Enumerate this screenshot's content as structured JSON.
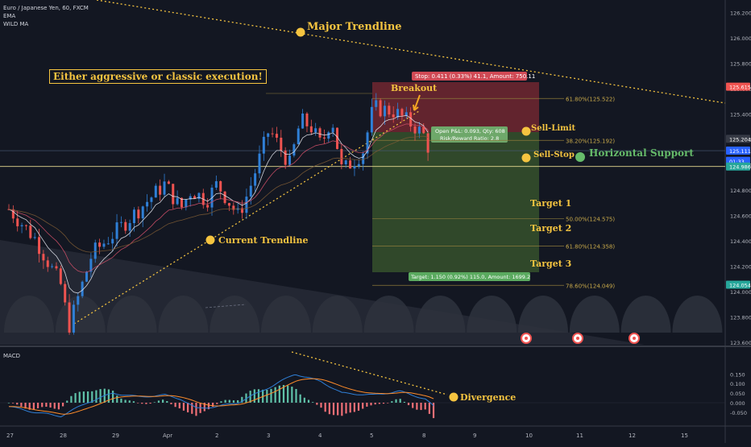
{
  "header": {
    "symbol": "Euro / Japanese Yen, 60, FXCM",
    "indicators": [
      "EMA",
      "WILD MA"
    ]
  },
  "annotations": {
    "major_trendline": "Major Trendline",
    "current_trendline": "Current Trendline",
    "execution_note": "Either aggressive or classic execution!",
    "breakout": "Breakout",
    "sell_limit": "Sell-Limit",
    "sell_stop": "Sell-Stop",
    "horizontal_support": "Horizontal Support",
    "target1": "Target 1",
    "target2": "Target 2",
    "target3": "Target 3",
    "divergence": "Divergence"
  },
  "position_tool": {
    "stop_label": "Stop: 0.411 (0.33%) 41.1, Amount: 750.11",
    "open_pnl": "Open P&L: 0.093, Qty: 608",
    "risk_reward": "Risk/Reward Ratio: 2.8",
    "target_label": "Target: 1.150 (0.92%) 115.0, Amount: 1699.2"
  },
  "fib_levels": [
    {
      "label": "61.80%(125.522)",
      "price": 125.522
    },
    {
      "label": "38.20%(125.192)",
      "price": 125.192
    },
    {
      "label": "50.00%(124.575)",
      "price": 124.575
    },
    {
      "label": "61.80%(124.358)",
      "price": 124.358
    },
    {
      "label": "78.60%(124.049)",
      "price": 124.049
    }
  ],
  "price_axis": {
    "ticks": [
      "126.200",
      "126.000",
      "125.800",
      "125.600",
      "125.400",
      "125.200",
      "125.000",
      "124.800",
      "124.600",
      "124.400",
      "124.200",
      "124.000",
      "123.800",
      "123.600"
    ],
    "tags": [
      {
        "text": "125.615",
        "price": 125.615,
        "color": "#ef5350"
      },
      {
        "text": "125.204",
        "price": 125.204,
        "color": "#363a45"
      },
      {
        "text": "125.111",
        "price": 125.111,
        "color": "#2962ff"
      },
      {
        "text": "01:33",
        "price": 125.03,
        "color": "#2962ff"
      },
      {
        "text": "124.986",
        "price": 124.986,
        "color": "#26a69a"
      },
      {
        "text": "124.054",
        "price": 124.054,
        "color": "#26a69a"
      }
    ]
  },
  "time_axis": [
    "27",
    "28",
    "29",
    "Apr",
    "2",
    "3",
    "4",
    "5",
    "8",
    "9",
    "10",
    "11",
    "12",
    "15"
  ],
  "macd": {
    "label": "MACD",
    "ticks": [
      "0.150",
      "0.100",
      "0.050",
      "0.000",
      "-0.050"
    ]
  },
  "colors": {
    "up": "#26a69a",
    "down": "#ef5350",
    "trendline": "#f5c440",
    "stop_zone": "#7d2a33",
    "target_zone": "#3b5a2e"
  },
  "chart_data": {
    "type": "line",
    "title": "Euro / Japanese Yen, 60, FXCM",
    "ylim": [
      123.52,
      126.28
    ],
    "price_path": {
      "x_days": [
        0,
        0.5,
        1.0,
        1.15,
        1.6,
        2.0,
        2.5,
        3.0,
        3.3,
        3.5,
        3.8,
        4.0,
        4.4,
        4.6,
        5.0,
        5.4,
        5.6,
        5.8,
        6.0,
        6.2,
        6.4,
        6.8,
        7.0,
        7.4,
        7.8,
        8.0,
        8.15
      ],
      "values": [
        124.65,
        124.42,
        124.05,
        123.72,
        124.3,
        124.45,
        124.65,
        124.85,
        124.65,
        124.8,
        124.72,
        124.85,
        124.6,
        124.78,
        125.28,
        125.0,
        125.35,
        125.3,
        125.15,
        125.38,
        124.95,
        125.1,
        125.45,
        125.42,
        125.3,
        125.22,
        125.0
      ]
    },
    "macd_path": {
      "x_days": [
        0,
        0.5,
        1.0,
        1.5,
        2.0,
        2.5,
        3.0,
        3.3,
        3.6,
        4.0,
        4.4,
        5.0,
        5.5,
        6.0,
        6.4,
        7.0,
        7.5,
        8.0,
        8.2
      ],
      "values": [
        -0.02,
        -0.05,
        -0.07,
        0.0,
        0.05,
        0.03,
        0.04,
        0.02,
        -0.03,
        -0.02,
        0.0,
        0.08,
        0.15,
        0.11,
        0.05,
        0.04,
        0.06,
        0.02,
        -0.03
      ]
    }
  }
}
